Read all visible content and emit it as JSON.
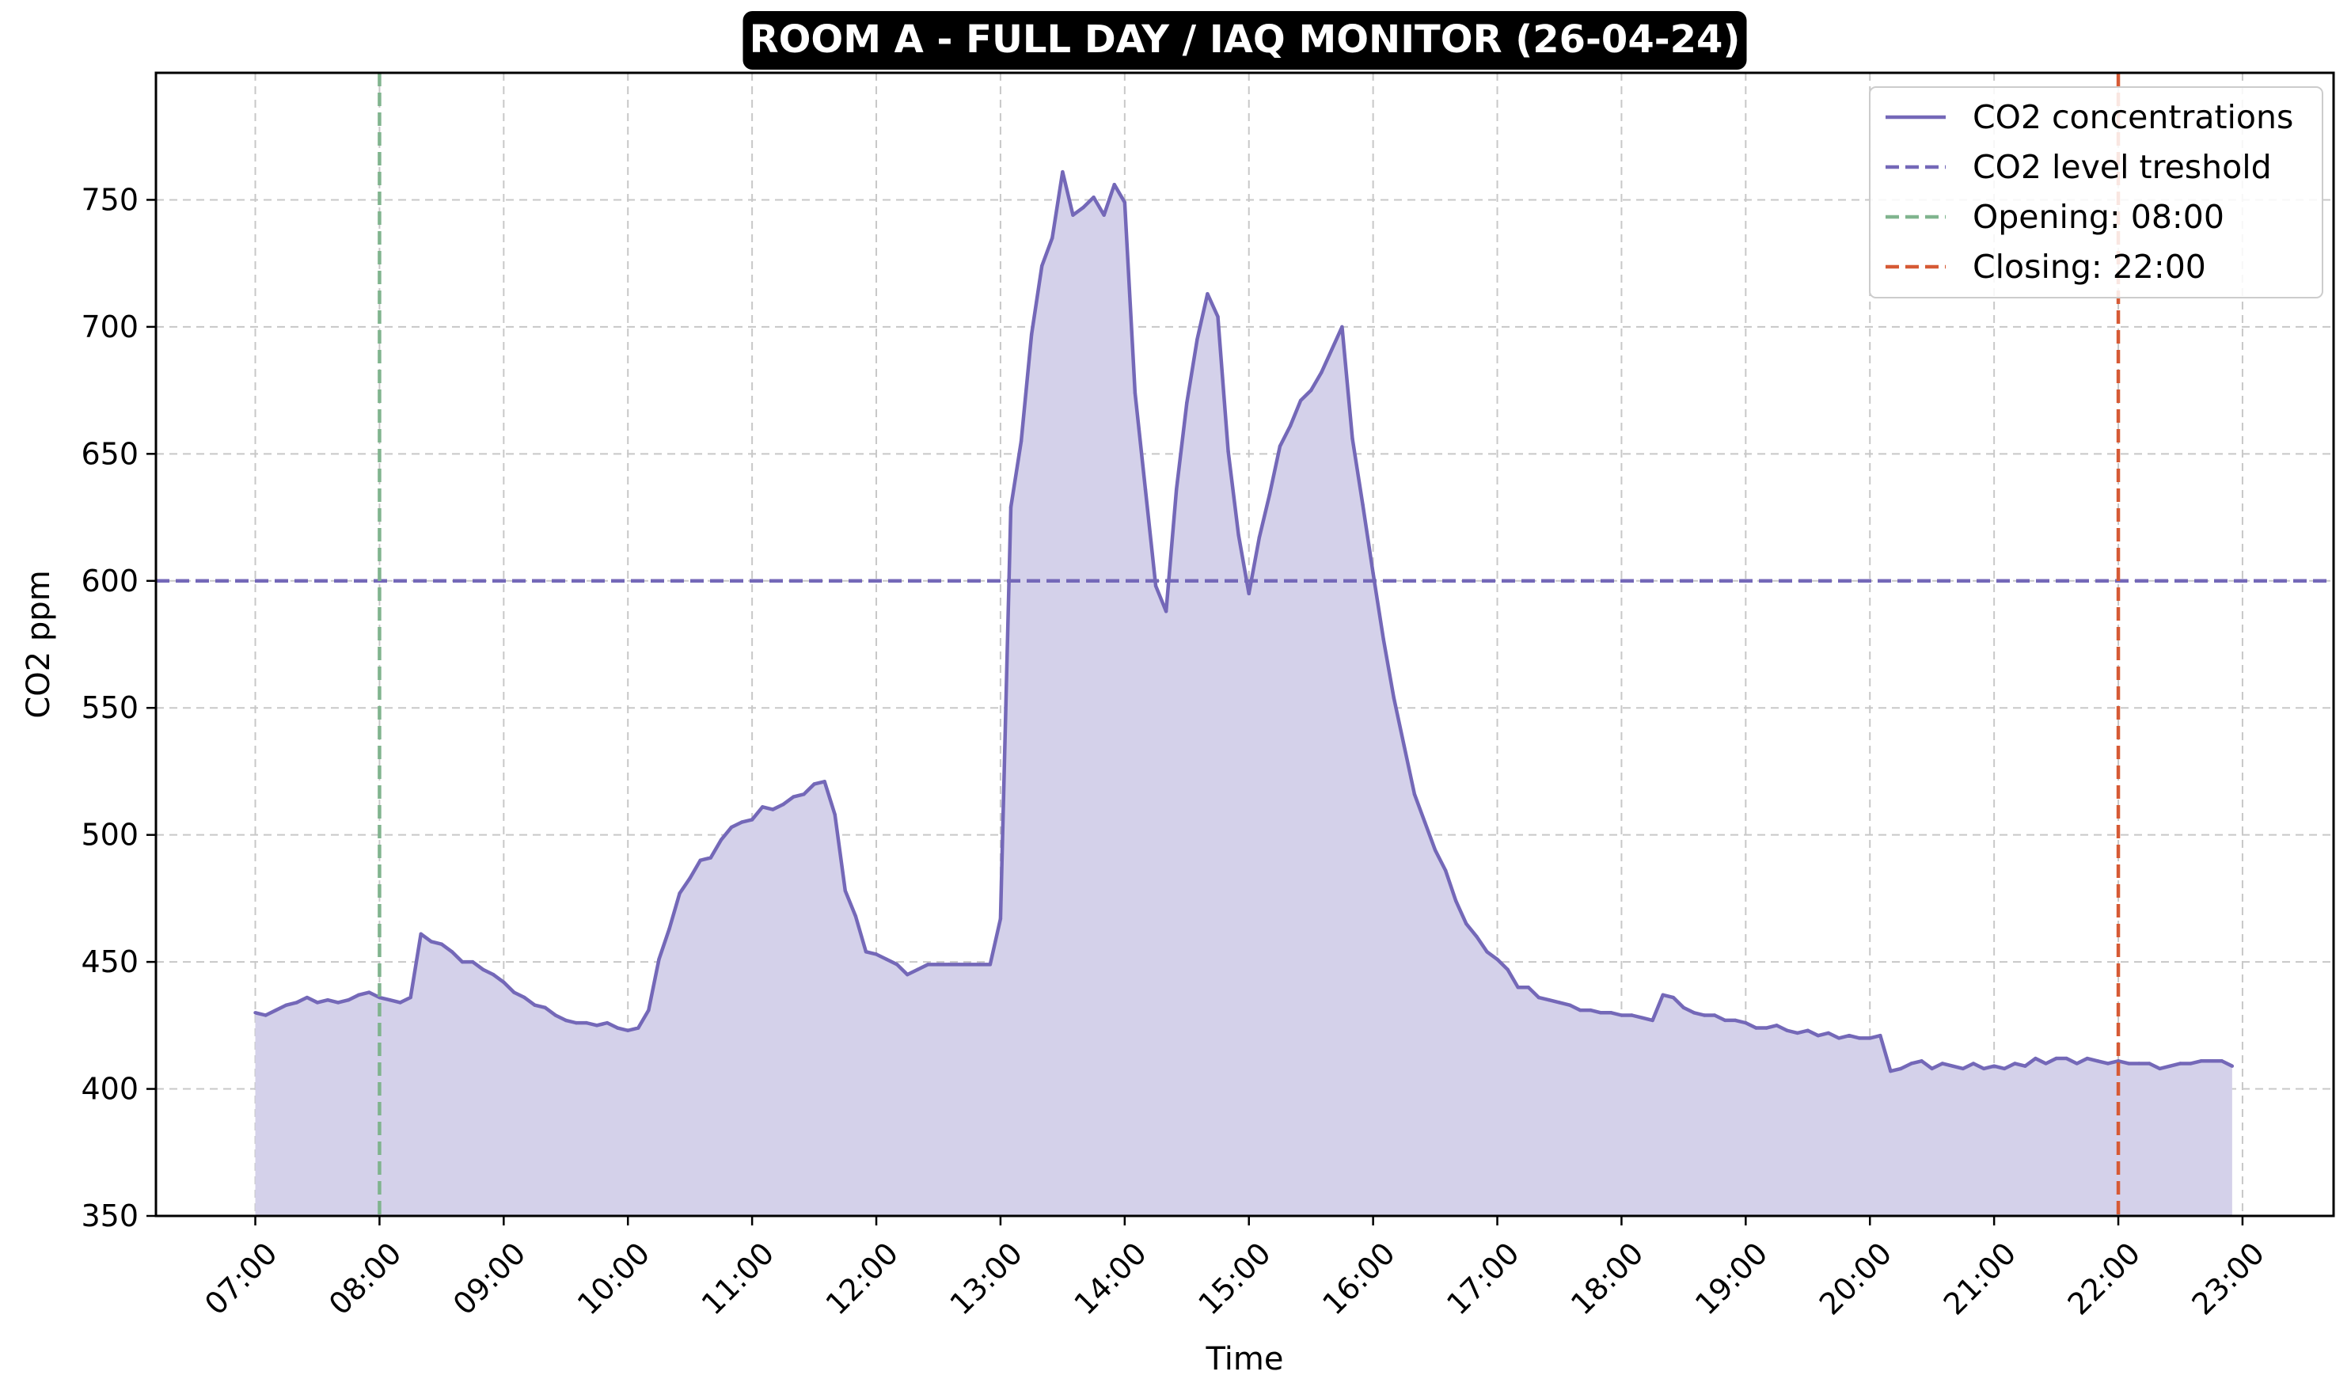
{
  "chart_data": {
    "type": "area",
    "title": "ROOM A - FULL DAY / IAQ MONITOR (26-04-24)",
    "xlabel": "Time",
    "ylabel": "CO2 ppm",
    "x_ticks": [
      "07:00",
      "08:00",
      "09:00",
      "10:00",
      "11:00",
      "12:00",
      "13:00",
      "14:00",
      "15:00",
      "16:00",
      "17:00",
      "18:00",
      "19:00",
      "20:00",
      "21:00",
      "22:00",
      "23:00"
    ],
    "y_ticks": [
      350,
      400,
      450,
      500,
      550,
      600,
      650,
      700,
      750
    ],
    "xlim": [
      "06:12",
      "23:44"
    ],
    "ylim": [
      350,
      800
    ],
    "grid": true,
    "legend_position": "top-right",
    "colors": {
      "series": "#7468b8",
      "fill": "#d4d1ea",
      "threshold": "#7468b8",
      "opening": "#80b48e",
      "closing": "#d65a35",
      "grid": "#c8c8c8",
      "title_bg": "#000000"
    },
    "series": [
      {
        "name": "CO2 concentrations",
        "points": [
          [
            "07:00",
            430
          ],
          [
            "07:05",
            429
          ],
          [
            "07:10",
            431
          ],
          [
            "07:15",
            433
          ],
          [
            "07:20",
            434
          ],
          [
            "07:25",
            436
          ],
          [
            "07:30",
            434
          ],
          [
            "07:35",
            435
          ],
          [
            "07:40",
            434
          ],
          [
            "07:45",
            435
          ],
          [
            "07:50",
            437
          ],
          [
            "07:55",
            438
          ],
          [
            "08:00",
            436
          ],
          [
            "08:05",
            435
          ],
          [
            "08:10",
            434
          ],
          [
            "08:15",
            436
          ],
          [
            "08:20",
            461
          ],
          [
            "08:25",
            458
          ],
          [
            "08:30",
            457
          ],
          [
            "08:35",
            454
          ],
          [
            "08:40",
            450
          ],
          [
            "08:45",
            450
          ],
          [
            "08:50",
            447
          ],
          [
            "08:55",
            445
          ],
          [
            "09:00",
            442
          ],
          [
            "09:05",
            438
          ],
          [
            "09:10",
            436
          ],
          [
            "09:15",
            433
          ],
          [
            "09:20",
            432
          ],
          [
            "09:25",
            429
          ],
          [
            "09:30",
            427
          ],
          [
            "09:35",
            426
          ],
          [
            "09:40",
            426
          ],
          [
            "09:45",
            425
          ],
          [
            "09:50",
            426
          ],
          [
            "09:55",
            424
          ],
          [
            "10:00",
            423
          ],
          [
            "10:05",
            424
          ],
          [
            "10:10",
            431
          ],
          [
            "10:15",
            451
          ],
          [
            "10:20",
            463
          ],
          [
            "10:25",
            477
          ],
          [
            "10:30",
            483
          ],
          [
            "10:35",
            490
          ],
          [
            "10:40",
            491
          ],
          [
            "10:45",
            498
          ],
          [
            "10:50",
            503
          ],
          [
            "10:55",
            505
          ],
          [
            "11:00",
            506
          ],
          [
            "11:05",
            511
          ],
          [
            "11:10",
            510
          ],
          [
            "11:15",
            512
          ],
          [
            "11:20",
            515
          ],
          [
            "11:25",
            516
          ],
          [
            "11:30",
            520
          ],
          [
            "11:35",
            521
          ],
          [
            "11:40",
            508
          ],
          [
            "11:45",
            478
          ],
          [
            "11:50",
            468
          ],
          [
            "11:55",
            454
          ],
          [
            "12:00",
            453
          ],
          [
            "12:05",
            451
          ],
          [
            "12:10",
            449
          ],
          [
            "12:15",
            445
          ],
          [
            "12:20",
            447
          ],
          [
            "12:25",
            449
          ],
          [
            "12:30",
            449
          ],
          [
            "12:35",
            449
          ],
          [
            "12:40",
            449
          ],
          [
            "12:45",
            449
          ],
          [
            "12:50",
            449
          ],
          [
            "12:55",
            449
          ],
          [
            "13:00",
            467
          ],
          [
            "13:05",
            629
          ],
          [
            "13:10",
            655
          ],
          [
            "13:15",
            697
          ],
          [
            "13:20",
            724
          ],
          [
            "13:25",
            735
          ],
          [
            "13:30",
            761
          ],
          [
            "13:35",
            744
          ],
          [
            "13:40",
            747
          ],
          [
            "13:45",
            751
          ],
          [
            "13:50",
            744
          ],
          [
            "13:55",
            756
          ],
          [
            "14:00",
            749
          ],
          [
            "14:05",
            674
          ],
          [
            "14:10",
            636
          ],
          [
            "14:15",
            598
          ],
          [
            "14:20",
            588
          ],
          [
            "14:25",
            636
          ],
          [
            "14:30",
            670
          ],
          [
            "14:35",
            695
          ],
          [
            "14:40",
            713
          ],
          [
            "14:45",
            704
          ],
          [
            "14:50",
            651
          ],
          [
            "14:55",
            618
          ],
          [
            "15:00",
            595
          ],
          [
            "15:05",
            617
          ],
          [
            "15:10",
            634
          ],
          [
            "15:15",
            653
          ],
          [
            "15:20",
            661
          ],
          [
            "15:25",
            671
          ],
          [
            "15:30",
            675
          ],
          [
            "15:35",
            682
          ],
          [
            "15:40",
            691
          ],
          [
            "15:45",
            700
          ],
          [
            "15:50",
            656
          ],
          [
            "15:55",
            630
          ],
          [
            "16:00",
            603
          ],
          [
            "16:05",
            577
          ],
          [
            "16:10",
            554
          ],
          [
            "16:15",
            535
          ],
          [
            "16:20",
            516
          ],
          [
            "16:25",
            505
          ],
          [
            "16:30",
            494
          ],
          [
            "16:35",
            486
          ],
          [
            "16:40",
            474
          ],
          [
            "16:45",
            465
          ],
          [
            "16:50",
            460
          ],
          [
            "16:55",
            454
          ],
          [
            "17:00",
            451
          ],
          [
            "17:05",
            447
          ],
          [
            "17:10",
            440
          ],
          [
            "17:15",
            440
          ],
          [
            "17:20",
            436
          ],
          [
            "17:25",
            435
          ],
          [
            "17:30",
            434
          ],
          [
            "17:35",
            433
          ],
          [
            "17:40",
            431
          ],
          [
            "17:45",
            431
          ],
          [
            "17:50",
            430
          ],
          [
            "17:55",
            430
          ],
          [
            "18:00",
            429
          ],
          [
            "18:05",
            429
          ],
          [
            "18:10",
            428
          ],
          [
            "18:15",
            427
          ],
          [
            "18:20",
            437
          ],
          [
            "18:25",
            436
          ],
          [
            "18:30",
            432
          ],
          [
            "18:35",
            430
          ],
          [
            "18:40",
            429
          ],
          [
            "18:45",
            429
          ],
          [
            "18:50",
            427
          ],
          [
            "18:55",
            427
          ],
          [
            "19:00",
            426
          ],
          [
            "19:05",
            424
          ],
          [
            "19:10",
            424
          ],
          [
            "19:15",
            425
          ],
          [
            "19:20",
            423
          ],
          [
            "19:25",
            422
          ],
          [
            "19:30",
            423
          ],
          [
            "19:35",
            421
          ],
          [
            "19:40",
            422
          ],
          [
            "19:45",
            420
          ],
          [
            "19:50",
            421
          ],
          [
            "19:55",
            420
          ],
          [
            "20:00",
            420
          ],
          [
            "20:05",
            421
          ],
          [
            "20:10",
            407
          ],
          [
            "20:15",
            408
          ],
          [
            "20:20",
            410
          ],
          [
            "20:25",
            411
          ],
          [
            "20:30",
            408
          ],
          [
            "20:35",
            410
          ],
          [
            "20:40",
            409
          ],
          [
            "20:45",
            408
          ],
          [
            "20:50",
            410
          ],
          [
            "20:55",
            408
          ],
          [
            "21:00",
            409
          ],
          [
            "21:05",
            408
          ],
          [
            "21:10",
            410
          ],
          [
            "21:15",
            409
          ],
          [
            "21:20",
            412
          ],
          [
            "21:25",
            410
          ],
          [
            "21:30",
            412
          ],
          [
            "21:35",
            412
          ],
          [
            "21:40",
            410
          ],
          [
            "21:45",
            412
          ],
          [
            "21:50",
            411
          ],
          [
            "21:55",
            410
          ],
          [
            "22:00",
            411
          ],
          [
            "22:05",
            410
          ],
          [
            "22:10",
            410
          ],
          [
            "22:15",
            410
          ],
          [
            "22:20",
            408
          ],
          [
            "22:25",
            409
          ],
          [
            "22:30",
            410
          ],
          [
            "22:35",
            410
          ],
          [
            "22:40",
            411
          ],
          [
            "22:45",
            411
          ],
          [
            "22:50",
            411
          ],
          [
            "22:55",
            409
          ]
        ]
      }
    ],
    "reference_lines": {
      "threshold": {
        "label": "CO2 level treshold",
        "y": 600
      },
      "opening": {
        "label": "Opening: 08:00",
        "x": "08:00"
      },
      "closing": {
        "label": "Closing: 22:00",
        "x": "22:00"
      }
    }
  }
}
